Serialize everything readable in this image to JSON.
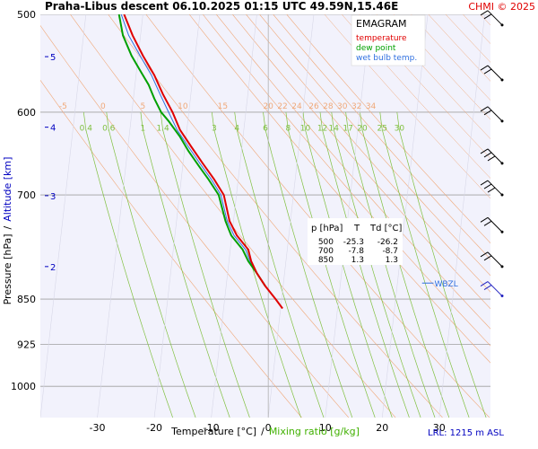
{
  "header": {
    "title": "Praha-Libus   descent   06.10.2025 01:15 UTC   49.59N,15.46E",
    "copyright": "CHMI © 2025"
  },
  "legend": {
    "title": "EMAGRAM",
    "items": [
      {
        "label": "temperature",
        "color": "#e00000"
      },
      {
        "label": "dew point",
        "color": "#00a000"
      },
      {
        "label": "wet bulb temp.",
        "color": "#3070e0"
      }
    ]
  },
  "axes": {
    "y_label_pressure": "Pressure [hPa]",
    "y_separator": "/",
    "y_label_altitude": "Altitude [km]",
    "x_label_temperature": "Temperature [°C]",
    "x_separator": "/",
    "x_label_mixing": "Mixing ratio [g/kg]",
    "footer_lrl": "LRL: 1215 m ASL"
  },
  "table": {
    "headers": [
      "p [hPa]",
      "T",
      "Td [°C]"
    ],
    "rows": [
      [
        "500",
        "-25.3",
        "-26.2"
      ],
      [
        "700",
        "-7.8",
        "-8.7"
      ],
      [
        "850",
        "1.3",
        "1.3"
      ]
    ]
  },
  "wbzl_label": "WBZL",
  "colors": {
    "plot_bg": "#f2f2fc",
    "temperature": "#e00000",
    "dewpoint": "#00a000",
    "wetbulb": "#3070e0",
    "dry_adiabat": "#f0a878",
    "mixing_ratio": "#80c040",
    "isobar": "#a0a0a0",
    "altitude": "#0000c0",
    "wind": "#000000"
  },
  "chart_data": {
    "type": "line",
    "x_axis": {
      "quantity": "temperature",
      "unit": "°C",
      "range": [
        -40,
        39
      ],
      "ticks": [
        -30,
        -20,
        -10,
        0,
        10,
        20,
        30
      ]
    },
    "y_axis": {
      "quantity": "pressure",
      "unit": "hPa",
      "scale": "log",
      "range": [
        1060,
        500
      ],
      "ticks": [
        500,
        600,
        700,
        850,
        925,
        1000
      ]
    },
    "altitude_ticks_km": [
      {
        "label": "2",
        "pressure": 800
      },
      {
        "label": "3",
        "pressure": 701
      },
      {
        "label": "4",
        "pressure": 617
      },
      {
        "label": "5",
        "pressure": 541
      }
    ],
    "dry_adiabat_labels": [
      {
        "label": "-5",
        "t": -36
      },
      {
        "label": "0",
        "t": -29
      },
      {
        "label": "5",
        "t": -22
      },
      {
        "label": "10",
        "t": -15
      },
      {
        "label": "15",
        "t": -8
      },
      {
        "label": "20",
        "t": 0
      },
      {
        "label": "22",
        "t": 2.5
      },
      {
        "label": "24",
        "t": 5
      },
      {
        "label": "26",
        "t": 8
      },
      {
        "label": "28",
        "t": 10.5
      },
      {
        "label": "30",
        "t": 13
      },
      {
        "label": "32",
        "t": 15.5
      },
      {
        "label": "34",
        "t": 18
      }
    ],
    "mixing_ratio_labels": [
      {
        "label": "0.4",
        "t": -32
      },
      {
        "label": "0.6",
        "t": -28
      },
      {
        "label": "1",
        "t": -22
      },
      {
        "label": "1.4",
        "t": -18.5
      },
      {
        "label": "3",
        "t": -9.5
      },
      {
        "label": "4",
        "t": -5.5
      },
      {
        "label": "6",
        "t": -0.5
      },
      {
        "label": "8",
        "t": 3.5
      },
      {
        "label": "10",
        "t": 6.5
      },
      {
        "label": "12",
        "t": 9.5
      },
      {
        "label": "14",
        "t": 11.5
      },
      {
        "label": "17",
        "t": 14
      },
      {
        "label": "20",
        "t": 16.5
      },
      {
        "label": "25",
        "t": 20
      },
      {
        "label": "30",
        "t": 23
      }
    ],
    "series": [
      {
        "name": "temperature",
        "points": [
          [
            2.5,
            865
          ],
          [
            1.3,
            850
          ],
          [
            -0.5,
            830
          ],
          [
            -2,
            810
          ],
          [
            -3,
            792
          ],
          [
            -3.5,
            775
          ],
          [
            -5.5,
            755
          ],
          [
            -6.8,
            735
          ],
          [
            -7.8,
            700
          ],
          [
            -9.5,
            680
          ],
          [
            -11.5,
            660
          ],
          [
            -13.5,
            640
          ],
          [
            -15.5,
            620
          ],
          [
            -16.8,
            600
          ],
          [
            -18.5,
            580
          ],
          [
            -20,
            560
          ],
          [
            -22,
            540
          ],
          [
            -23.8,
            520
          ],
          [
            -25.3,
            500
          ]
        ]
      },
      {
        "name": "dew point",
        "points": [
          [
            -0.5,
            830
          ],
          [
            -2,
            810
          ],
          [
            -3.5,
            792
          ],
          [
            -4.5,
            775
          ],
          [
            -6.5,
            755
          ],
          [
            -7.5,
            735
          ],
          [
            -8.7,
            700
          ],
          [
            -10.5,
            680
          ],
          [
            -12,
            665
          ],
          [
            -14,
            645
          ],
          [
            -15.5,
            628
          ],
          [
            -17.5,
            610
          ],
          [
            -18.8,
            600
          ],
          [
            -20,
            585
          ],
          [
            -21,
            570
          ],
          [
            -22.5,
            555
          ],
          [
            -24,
            540
          ],
          [
            -25.5,
            520
          ],
          [
            -26.2,
            500
          ]
        ]
      },
      {
        "name": "wet bulb temp.",
        "points": [
          [
            -0.5,
            830
          ],
          [
            -2,
            810
          ],
          [
            -3.2,
            792
          ],
          [
            -4,
            775
          ],
          [
            -6,
            755
          ],
          [
            -7.2,
            735
          ],
          [
            -8.3,
            700
          ],
          [
            -10,
            680
          ],
          [
            -12,
            660
          ],
          [
            -14,
            640
          ],
          [
            -16,
            620
          ],
          [
            -17.5,
            600
          ],
          [
            -19,
            580
          ],
          [
            -20.5,
            560
          ],
          [
            -22.5,
            540
          ],
          [
            -24.5,
            520
          ],
          [
            -25.8,
            500
          ]
        ]
      }
    ],
    "wbzl_pressure": 825,
    "wind_barbs": [
      {
        "pressure": 510,
        "barbs": 2
      },
      {
        "pressure": 565,
        "barbs": 2
      },
      {
        "pressure": 610,
        "barbs": 2
      },
      {
        "pressure": 660,
        "barbs": 3
      },
      {
        "pressure": 700,
        "barbs": 3
      },
      {
        "pressure": 750,
        "barbs": 2
      },
      {
        "pressure": 800,
        "barbs": 2
      },
      {
        "pressure": 845,
        "barbs": 2,
        "color": "blue"
      }
    ]
  }
}
